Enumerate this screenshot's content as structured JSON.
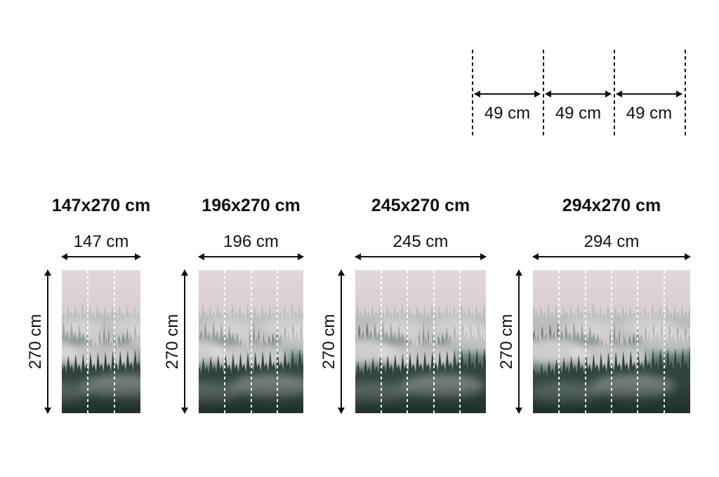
{
  "cut_diagram": {
    "labels": [
      "49 cm",
      "49 cm",
      "49 cm"
    ]
  },
  "panels": [
    {
      "title": "147x270 cm",
      "width_label": "147 cm",
      "height_label": "270 cm",
      "segments": 3
    },
    {
      "title": "196x270 cm",
      "width_label": "196 cm",
      "height_label": "270 cm",
      "segments": 4
    },
    {
      "title": "245x270 cm",
      "width_label": "245 cm",
      "height_label": "270 cm",
      "segments": 5
    },
    {
      "title": "294x270 cm",
      "width_label": "294 cm",
      "height_label": "270 cm",
      "segments": 6
    }
  ],
  "colors": {
    "background": "#ffffff",
    "text": "#111111",
    "dimension_lines": "#111111",
    "seam_line": "#ffffff",
    "photo_sky": "#ded3d9",
    "photo_far_trees": "#8d9a94",
    "photo_mid_trees": "#54695f",
    "photo_near_trees": "#31443b",
    "photo_fog": "#ece6ea"
  }
}
